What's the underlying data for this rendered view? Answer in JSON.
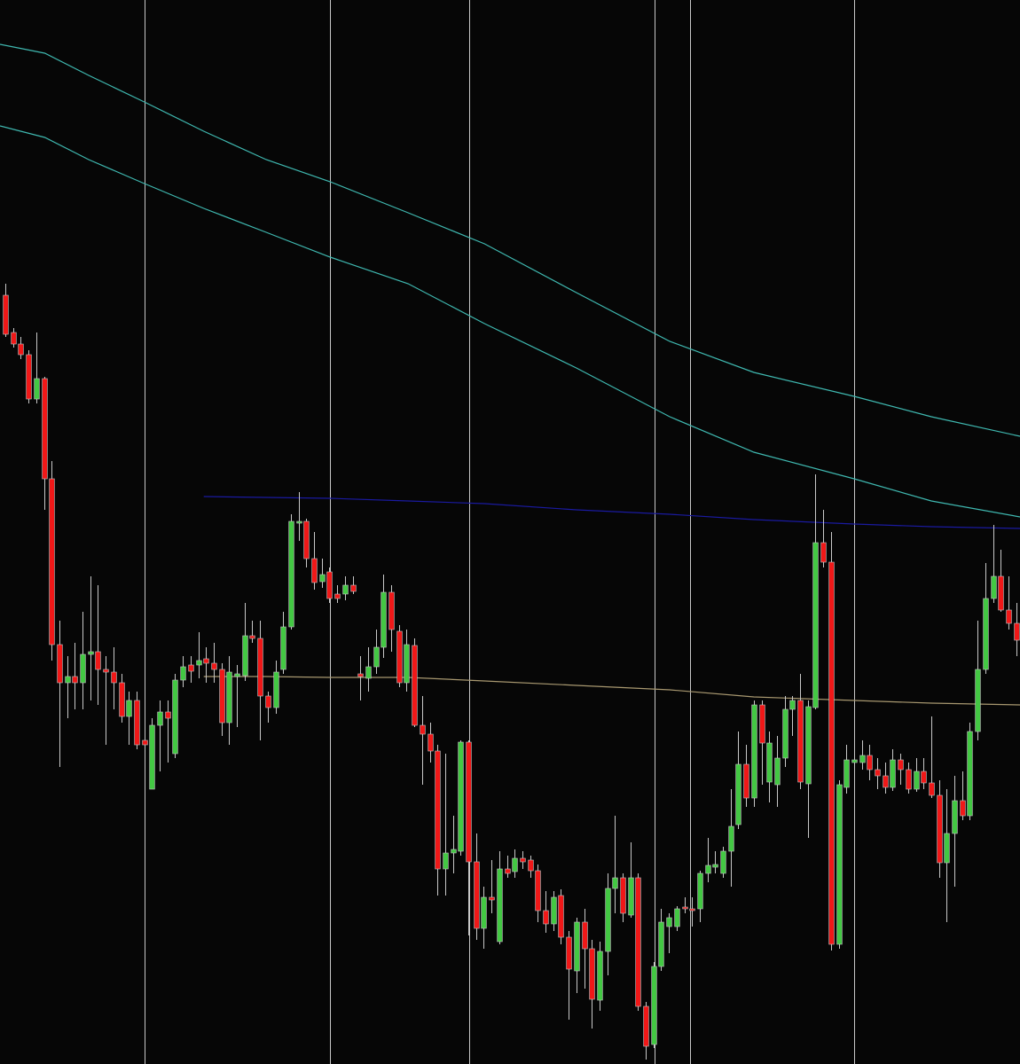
{
  "chart_data": {
    "type": "candlestick",
    "xlim": [
      -0.7,
      131.5
    ],
    "ylim": [
      0,
      1200
    ],
    "background": "#060606",
    "up_color": "#43c843",
    "down_color": "#f01818",
    "wick_color": "#c8c8c8",
    "vlines": [
      18,
      42.1,
      60.1,
      84.1,
      88.7,
      110
    ],
    "vline_color": "#c8c8c8",
    "open": [
      867,
      825,
      812,
      800,
      750,
      773,
      660,
      473,
      430,
      437,
      430,
      462,
      465,
      445,
      442,
      430,
      392,
      410,
      365,
      310,
      382,
      397,
      350,
      433,
      450,
      450,
      457,
      452,
      445,
      385,
      437,
      438,
      483,
      480,
      415,
      402,
      445,
      493,
      610,
      612,
      570,
      544,
      555,
      530,
      530,
      540,
      440,
      435,
      448,
      470,
      532,
      488,
      430,
      472,
      382,
      372,
      353,
      220,
      238,
      240,
      363,
      228,
      153,
      188,
      138,
      220,
      217,
      232,
      230,
      218,
      173,
      158,
      190,
      143,
      105,
      160,
      130,
      72,
      127,
      198,
      210,
      168,
      210,
      65,
      22,
      110,
      155,
      155,
      177,
      175,
      175,
      215,
      222,
      215,
      240,
      270,
      338,
      300,
      405,
      318,
      315,
      345,
      400,
      410,
      316,
      402,
      588,
      566,
      135,
      312,
      340,
      340,
      348,
      332,
      325,
      312,
      343,
      332,
      310,
      330,
      317,
      303,
      227,
      260,
      297,
      280,
      375,
      445,
      525,
      550,
      512,
      497
    ],
    "high": [
      880,
      830,
      820,
      805,
      825,
      775,
      680,
      500,
      460,
      475,
      510,
      550,
      540,
      460,
      470,
      440,
      420,
      420,
      400,
      390,
      410,
      410,
      440,
      460,
      460,
      487,
      470,
      475,
      452,
      460,
      450,
      520,
      500,
      500,
      420,
      455,
      510,
      620,
      645,
      615,
      600,
      570,
      560,
      540,
      550,
      550,
      460,
      470,
      490,
      552,
      540,
      495,
      490,
      480,
      415,
      385,
      360,
      350,
      280,
      365,
      365,
      260,
      200,
      230,
      240,
      235,
      242,
      240,
      235,
      225,
      195,
      195,
      197,
      150,
      165,
      175,
      140,
      138,
      215,
      280,
      215,
      250,
      215,
      70,
      115,
      175,
      170,
      178,
      188,
      188,
      218,
      255,
      240,
      245,
      310,
      375,
      360,
      410,
      410,
      375,
      370,
      415,
      415,
      440,
      410,
      665,
      625,
      600,
      320,
      360,
      355,
      365,
      360,
      345,
      340,
      355,
      350,
      340,
      345,
      345,
      392,
      320,
      310,
      325,
      330,
      385,
      500,
      565,
      608,
      580,
      550,
      520
    ],
    "low": [
      820,
      808,
      795,
      745,
      745,
      625,
      455,
      335,
      390,
      400,
      400,
      410,
      405,
      360,
      400,
      385,
      360,
      355,
      330,
      310,
      330,
      340,
      345,
      425,
      430,
      435,
      430,
      430,
      370,
      360,
      380,
      432,
      475,
      365,
      385,
      395,
      440,
      490,
      590,
      560,
      535,
      537,
      520,
      520,
      523,
      530,
      410,
      420,
      440,
      458,
      465,
      425,
      420,
      380,
      315,
      340,
      190,
      190,
      215,
      235,
      145,
      140,
      130,
      170,
      135,
      210,
      210,
      220,
      210,
      160,
      148,
      150,
      135,
      50,
      80,
      85,
      40,
      60,
      100,
      170,
      160,
      165,
      60,
      5,
      18,
      105,
      125,
      150,
      170,
      155,
      160,
      205,
      215,
      210,
      200,
      265,
      290,
      290,
      315,
      295,
      290,
      335,
      370,
      310,
      255,
      400,
      560,
      128,
      130,
      305,
      320,
      332,
      320,
      310,
      305,
      308,
      315,
      305,
      307,
      310,
      300,
      210,
      160,
      200,
      275,
      275,
      365,
      440,
      520,
      510,
      490,
      460
    ],
    "close": [
      823,
      812,
      800,
      750,
      773,
      660,
      473,
      430,
      437,
      430,
      462,
      465,
      445,
      442,
      430,
      392,
      410,
      360,
      360,
      382,
      397,
      390,
      433,
      448,
      443,
      455,
      452,
      445,
      385,
      442,
      440,
      483,
      480,
      415,
      402,
      442,
      493,
      612,
      612,
      570,
      543,
      552,
      525,
      525,
      540,
      533,
      437,
      448,
      470,
      532,
      490,
      430,
      473,
      382,
      372,
      353,
      220,
      238,
      242,
      363,
      228,
      153,
      188,
      185,
      220,
      215,
      232,
      228,
      218,
      173,
      158,
      188,
      143,
      107,
      160,
      130,
      73,
      127,
      198,
      210,
      170,
      210,
      65,
      20,
      110,
      160,
      165,
      175,
      175,
      173,
      215,
      224,
      225,
      240,
      268,
      338,
      300,
      405,
      362,
      362,
      345,
      400,
      410,
      318,
      403,
      588,
      566,
      135,
      315,
      343,
      343,
      348,
      332,
      325,
      312,
      343,
      332,
      310,
      330,
      317,
      303,
      227,
      260,
      297,
      280,
      375,
      445,
      525,
      550,
      512,
      497,
      478
    ],
    "lines": {
      "x": [
        -0.7,
        5.1,
        10.8,
        18,
        25.7,
        33.8,
        42.1,
        52.2,
        62.1,
        74,
        86.1,
        97,
        110,
        120,
        131.5
      ],
      "series": [
        {
          "color": "#3fb8b0",
          "values": [
            1150,
            1140,
            1115,
            1085,
            1052,
            1020,
            995,
            960,
            925,
            870,
            815,
            780,
            753,
            730,
            708
          ]
        },
        {
          "color": "#3fb8b0",
          "values": [
            1058,
            1045,
            1020,
            993,
            965,
            938,
            910,
            880,
            835,
            785,
            730,
            690,
            660,
            635,
            617
          ]
        },
        {
          "color": "#1a1aa0",
          "values": [
            null,
            null,
            null,
            null,
            640,
            639,
            638,
            635,
            632,
            625,
            620,
            614,
            609,
            606,
            604
          ]
        },
        {
          "color": "#a89870",
          "values": [
            null,
            null,
            null,
            null,
            437,
            437,
            436,
            436,
            432,
            427,
            422,
            414,
            410,
            407,
            405
          ]
        }
      ]
    }
  }
}
